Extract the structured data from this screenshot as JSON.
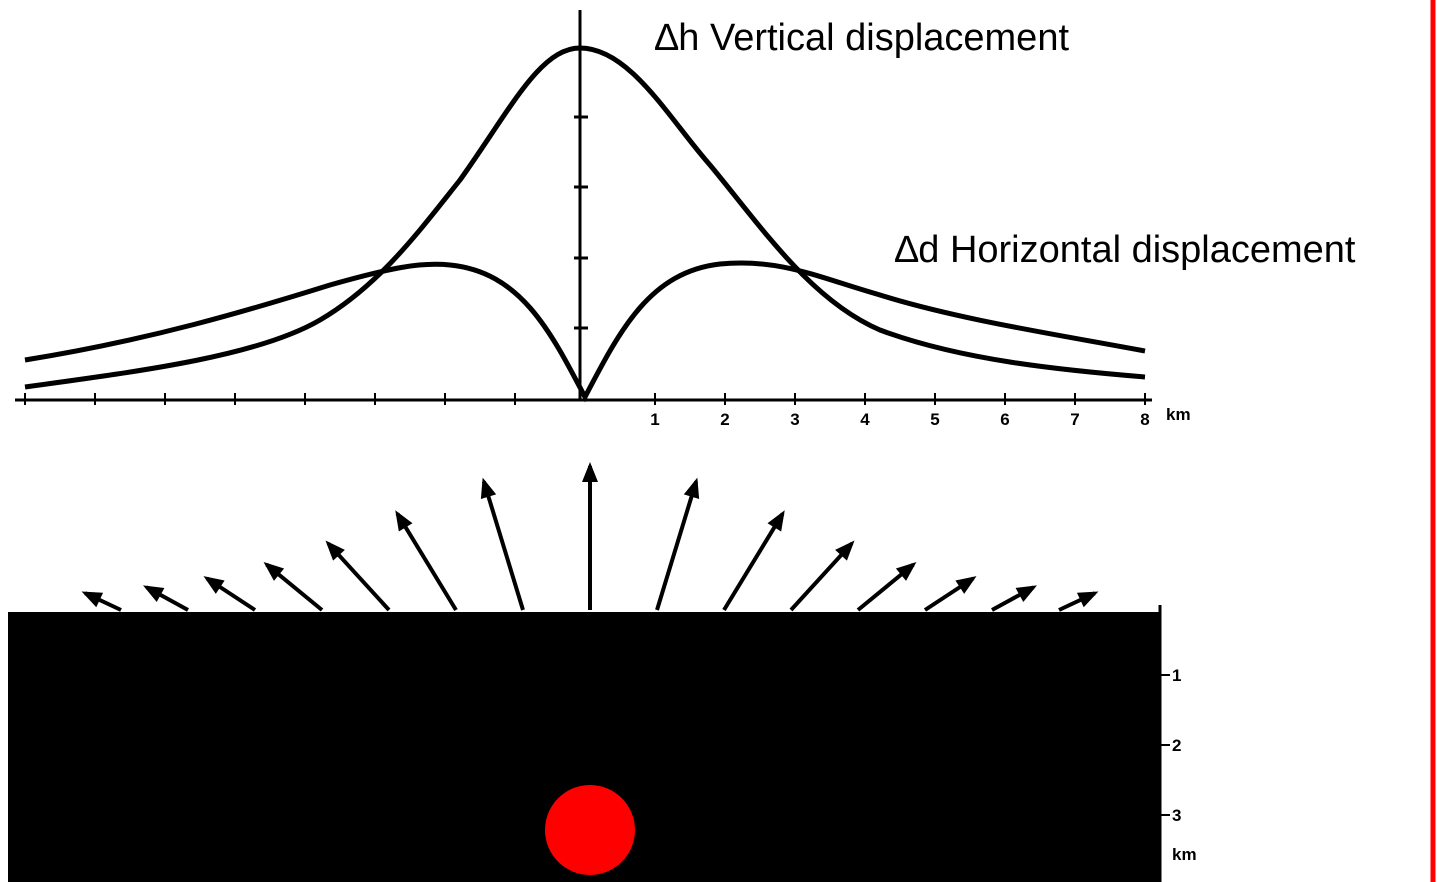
{
  "labels": {
    "vertical": "∆h  Vertical displacement",
    "horizontal": "∆d  Horizontal displacement"
  },
  "distance_axis": {
    "ticks": [
      "1",
      "2",
      "3",
      "4",
      "5",
      "6",
      "7",
      "8"
    ],
    "unit": "km"
  },
  "depth_axis": {
    "ticks": [
      "1",
      "2",
      "3"
    ],
    "unit": "km"
  }
}
